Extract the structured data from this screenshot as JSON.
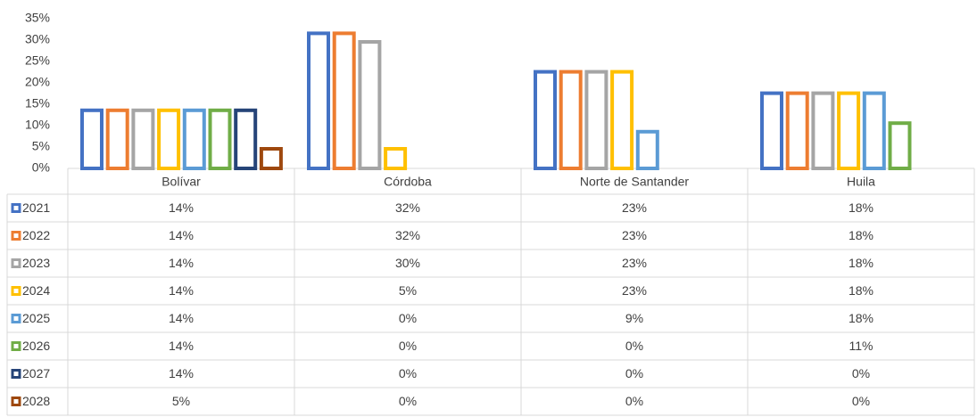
{
  "chart_data": {
    "type": "bar",
    "categories": [
      "Bolívar",
      "Córdoba",
      "Norte de Santander",
      "Huila"
    ],
    "ylim": [
      0,
      35
    ],
    "yticks": [
      {
        "value": 0,
        "label": "0%"
      },
      {
        "value": 5,
        "label": "5%"
      },
      {
        "value": 10,
        "label": "10%"
      },
      {
        "value": 15,
        "label": "15%"
      },
      {
        "value": 20,
        "label": "20%"
      },
      {
        "value": 25,
        "label": "25%"
      },
      {
        "value": 30,
        "label": "30%"
      },
      {
        "value": 35,
        "label": "35%"
      }
    ],
    "series": [
      {
        "name": "2021",
        "color": "#4472c4",
        "values": [
          14,
          32,
          23,
          18
        ],
        "value_labels": [
          "14%",
          "32%",
          "23%",
          "18%"
        ]
      },
      {
        "name": "2022",
        "color": "#ed7d31",
        "values": [
          14,
          32,
          23,
          18
        ],
        "value_labels": [
          "14%",
          "32%",
          "23%",
          "18%"
        ]
      },
      {
        "name": "2023",
        "color": "#a5a5a5",
        "values": [
          14,
          30,
          23,
          18
        ],
        "value_labels": [
          "14%",
          "30%",
          "23%",
          "18%"
        ]
      },
      {
        "name": "2024",
        "color": "#ffc000",
        "values": [
          14,
          5,
          23,
          18
        ],
        "value_labels": [
          "14%",
          "5%",
          "23%",
          "18%"
        ]
      },
      {
        "name": "2025",
        "color": "#5b9bd5",
        "values": [
          14,
          0,
          9,
          18
        ],
        "value_labels": [
          "14%",
          "0%",
          "9%",
          "18%"
        ]
      },
      {
        "name": "2026",
        "color": "#70ad47",
        "values": [
          14,
          0,
          0,
          11
        ],
        "value_labels": [
          "14%",
          "0%",
          "0%",
          "11%"
        ]
      },
      {
        "name": "2027",
        "color": "#264478",
        "values": [
          14,
          0,
          0,
          0
        ],
        "value_labels": [
          "14%",
          "0%",
          "0%",
          "0%"
        ]
      },
      {
        "name": "2028",
        "color": "#9e480e",
        "values": [
          5,
          0,
          0,
          0
        ],
        "value_labels": [
          "5%",
          "0%",
          "0%",
          "0%"
        ]
      }
    ]
  }
}
